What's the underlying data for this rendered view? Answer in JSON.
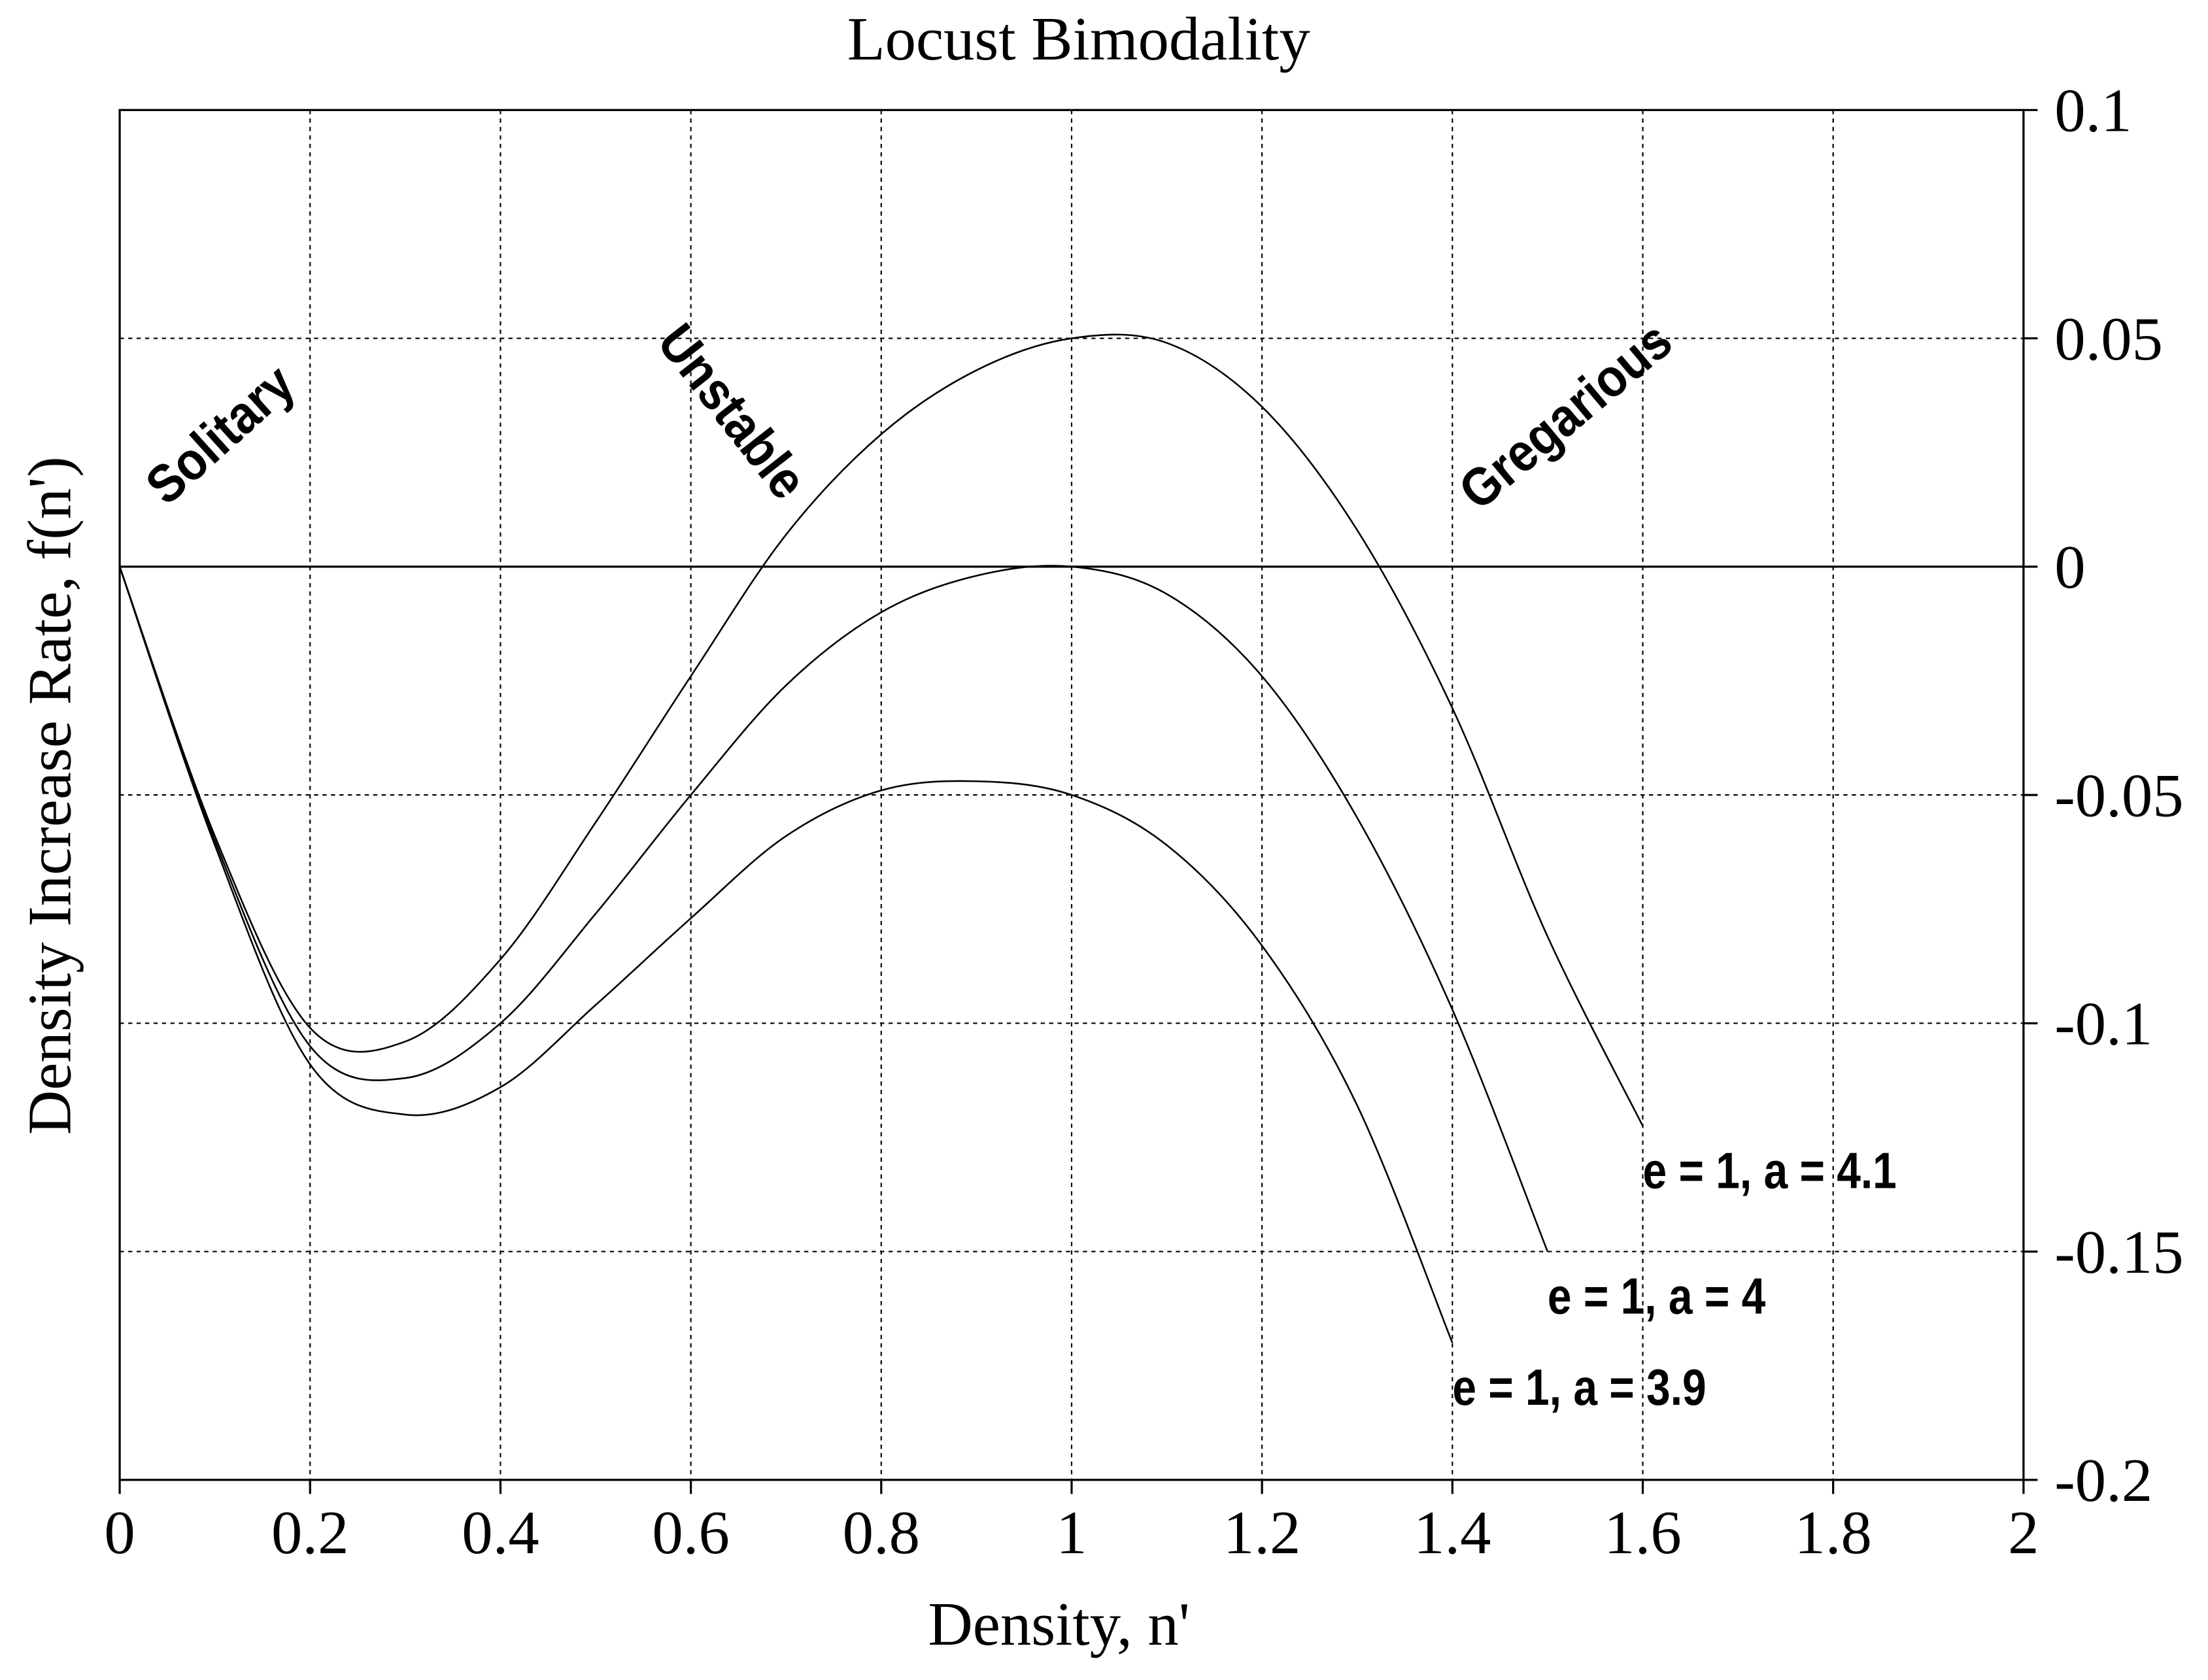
{
  "chart_data": {
    "type": "line",
    "title": "Locust Bimodality",
    "xlabel": "Density, n'",
    "ylabel": "Density Increase Rate, f(n')",
    "x": [
      0,
      0.1,
      0.2,
      0.3,
      0.4,
      0.5,
      0.6,
      0.7,
      0.8,
      0.9,
      1.0,
      1.1,
      1.2,
      1.3,
      1.4,
      1.5,
      1.6
    ],
    "series": [
      {
        "name": "e = 1, a = 4.1",
        "color": "#000000",
        "values": [
          0,
          -0.059,
          -0.101,
          -0.104,
          -0.086,
          -0.056,
          -0.024,
          0.007,
          0.029,
          0.043,
          0.05,
          0.049,
          0.035,
          0.008,
          -0.031,
          -0.081,
          -0.1225
        ]
      },
      {
        "name": "e = 1, a = 4",
        "color": "#000000",
        "values": [
          0,
          -0.06,
          -0.105,
          -0.112,
          -0.1,
          -0.076,
          -0.05,
          -0.026,
          -0.01,
          -0.002,
          0,
          -0.006,
          -0.024,
          -0.055,
          -0.097,
          -0.15,
          null
        ]
      },
      {
        "name": "e = 1, a = 3.9",
        "color": "#000000",
        "values": [
          0,
          -0.061,
          -0.109,
          -0.12,
          -0.114,
          -0.096,
          -0.077,
          -0.059,
          -0.049,
          -0.047,
          -0.05,
          -0.061,
          -0.083,
          -0.118,
          -0.17,
          null,
          null
        ]
      }
    ],
    "annotations": [
      "Solitary",
      "Unstable",
      "Gregarious"
    ],
    "xlim": [
      0,
      2
    ],
    "xticks": [
      0,
      0.2,
      0.4,
      0.6,
      0.8,
      1,
      1.2,
      1.4,
      1.6,
      1.8,
      2
    ],
    "ylim": [
      -0.2,
      0.1
    ],
    "yticks": [
      0.1,
      0.05,
      0,
      -0.05,
      -0.1,
      -0.15,
      -0.2
    ],
    "grid": true,
    "y_axis_side": "right"
  }
}
